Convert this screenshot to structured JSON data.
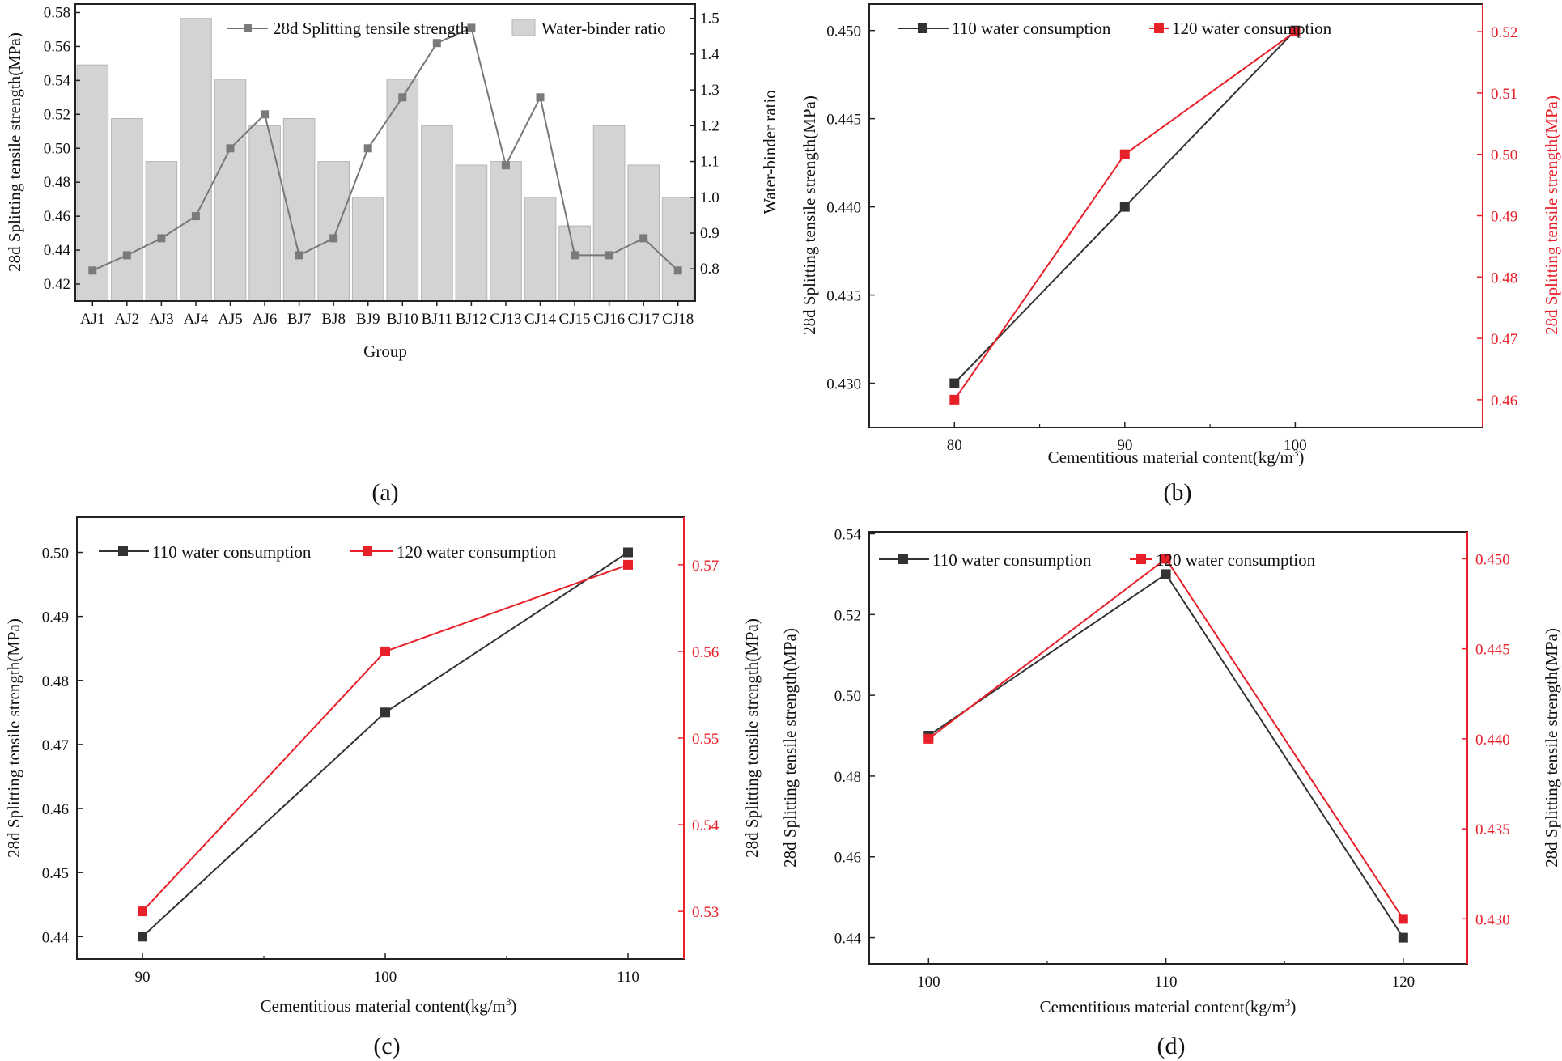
{
  "colors": {
    "black_series": "#333333",
    "red_series": "#e8202a",
    "bar_fill": "#d3d3d3",
    "bar_stroke": "#b5b5b5",
    "line_a": "#777777",
    "marker_a": "#7a7a7a"
  },
  "panels": {
    "a": {
      "label": "(a)"
    },
    "b": {
      "label": "(b)"
    },
    "c": {
      "label": "(c)"
    },
    "d": {
      "label": "(d)"
    }
  },
  "chart_data": [
    {
      "id": "a",
      "type": "bar",
      "title": "",
      "xlabel": "Group",
      "ylabel": "28d Splitting tensile strength(MPa)",
      "ylabel_right": "Water-binder ratio",
      "ylim": [
        0.41,
        0.585
      ],
      "ylim_right": [
        0.71,
        1.54
      ],
      "yticks": [
        "0.42",
        "0.44",
        "0.46",
        "0.48",
        "0.50",
        "0.52",
        "0.54",
        "0.56",
        "0.58"
      ],
      "yticks_right": [
        "0.8",
        "0.9",
        "1.0",
        "1.1",
        "1.2",
        "1.3",
        "1.4",
        "1.5"
      ],
      "legend_position": "top",
      "categories": [
        "AJ1",
        "AJ2",
        "AJ3",
        "AJ4",
        "AJ5",
        "AJ6",
        "BJ7",
        "BJ8",
        "BJ9",
        "BJ10",
        "BJ11",
        "BJ12",
        "CJ13",
        "CJ14",
        "CJ15",
        "CJ16",
        "CJ17",
        "CJ18"
      ],
      "series": [
        {
          "name": "28d Splitting tensile strength",
          "kind": "line",
          "axis": "left",
          "values": [
            0.428,
            0.437,
            0.447,
            0.46,
            0.5,
            0.52,
            0.437,
            0.447,
            0.5,
            0.53,
            0.562,
            0.571,
            0.49,
            0.53,
            0.437,
            0.437,
            0.447,
            0.428
          ]
        },
        {
          "name": "Water-binder ratio",
          "kind": "bar",
          "axis": "right",
          "values": [
            1.37,
            1.22,
            1.1,
            1.5,
            1.33,
            1.2,
            1.22,
            1.1,
            1.0,
            1.33,
            1.2,
            1.09,
            1.1,
            1.0,
            0.92,
            1.2,
            1.09,
            1.0
          ]
        }
      ]
    },
    {
      "id": "b",
      "type": "line",
      "title": "",
      "xlabel": "Cementitious material content(kg/m",
      "xlabel_sup": "3",
      "xlabel_tail": ")",
      "ylabel": "28d Splitting tensile strength(MPa)",
      "ylabel_right": "28d Splitting tensile strength(MPa)",
      "x": [
        80,
        90,
        100
      ],
      "xticks": [
        "80",
        "90",
        "100"
      ],
      "xlim": [
        75,
        111
      ],
      "ylim": [
        0.4275,
        0.4515
      ],
      "ylim_right": [
        0.4555,
        0.5245
      ],
      "yticks": [
        "0.430",
        "0.435",
        "0.440",
        "0.445",
        "0.450"
      ],
      "yticks_right": [
        "0.46",
        "0.47",
        "0.48",
        "0.49",
        "0.50",
        "0.51",
        "0.52"
      ],
      "legend_position": "top",
      "series": [
        {
          "name": "110 water consumption",
          "axis": "left",
          "values": [
            0.43,
            0.44,
            0.45
          ]
        },
        {
          "name": "120 water consumption",
          "axis": "right",
          "values": [
            0.46,
            0.5,
            0.52
          ]
        }
      ]
    },
    {
      "id": "c",
      "type": "line",
      "title": "",
      "xlabel": "Cementitious material content(kg/m",
      "xlabel_sup": "3",
      "xlabel_tail": ")",
      "ylabel": "28d Splitting tensile strength(MPa)",
      "ylabel_right": "28d Splitting tensile strength(MPa)",
      "x": [
        90,
        100,
        110
      ],
      "xticks": [
        "90",
        "100",
        "110"
      ],
      "xlim": [
        87.3,
        112.3
      ],
      "ylim": [
        0.4365,
        0.5055
      ],
      "ylim_right": [
        0.5245,
        0.5755
      ],
      "yticks": [
        "0.44",
        "0.45",
        "0.46",
        "0.47",
        "0.48",
        "0.49",
        "0.50"
      ],
      "yticks_right": [
        "0.53",
        "0.54",
        "0.55",
        "0.56",
        "0.57"
      ],
      "legend_position": "top-left",
      "series": [
        {
          "name": "110 water consumption",
          "axis": "left",
          "values": [
            0.44,
            0.475,
            0.5
          ]
        },
        {
          "name": "120 water consumption",
          "axis": "right",
          "values": [
            0.53,
            0.56,
            0.57
          ]
        }
      ]
    },
    {
      "id": "d",
      "type": "line",
      "title": "",
      "xlabel": "Cementitious material content(kg/m",
      "xlabel_sup": "3",
      "xlabel_tail": ")",
      "ylabel": "28d Splitting tensile strength(MPa)",
      "ylabel_right": "28d Splitting tensile strength(MPa)",
      "x": [
        100,
        110,
        120
      ],
      "xticks": [
        "100",
        "110",
        "120"
      ],
      "xlim": [
        97.5,
        122.7
      ],
      "ylim": [
        0.4335,
        0.5405
      ],
      "ylim_right": [
        0.4275,
        0.4515
      ],
      "yticks": [
        "0.44",
        "0.46",
        "0.48",
        "0.50",
        "0.52",
        "0.54"
      ],
      "yticks_right": [
        "0.430",
        "0.435",
        "0.440",
        "0.445",
        "0.450"
      ],
      "legend_position": "top-left",
      "series": [
        {
          "name": "110 water consumption",
          "axis": "left",
          "values": [
            0.49,
            0.53,
            0.44
          ]
        },
        {
          "name": "120 water consumption",
          "axis": "right",
          "values": [
            0.44,
            0.45,
            0.43
          ]
        }
      ]
    }
  ]
}
